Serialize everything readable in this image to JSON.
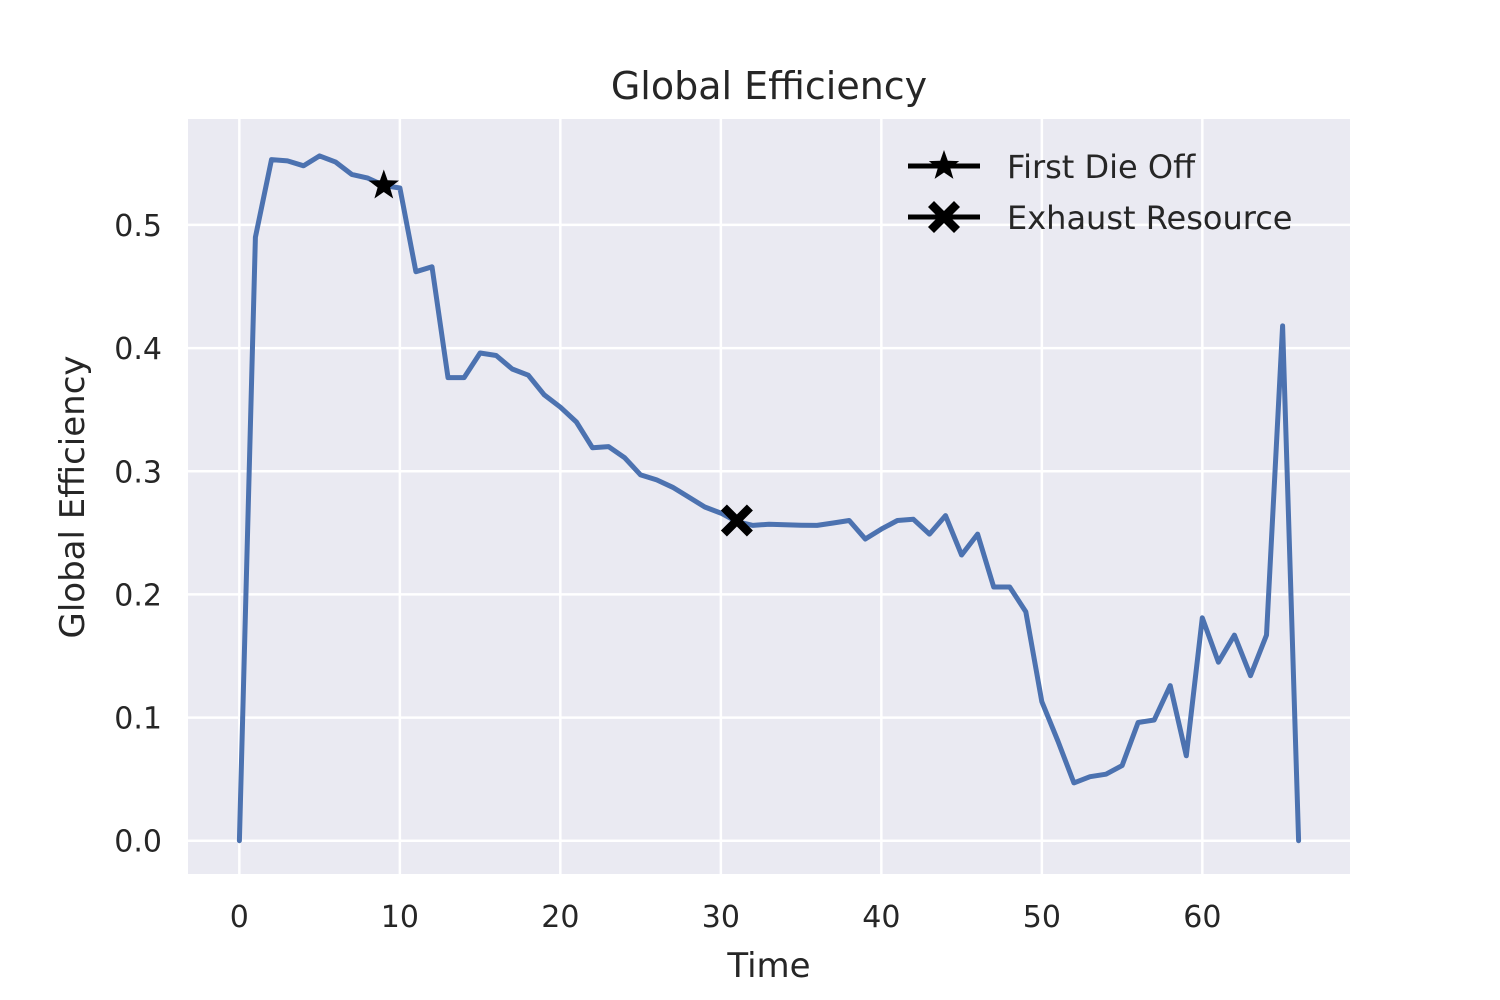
{
  "chart_data": {
    "type": "line",
    "title": "Global Efficiency",
    "xlabel": "Time",
    "ylabel": "Global Efficiency",
    "xlim": [
      -3.2,
      69.2
    ],
    "ylim": [
      -0.027,
      0.586
    ],
    "xticks": [
      0,
      10,
      20,
      30,
      40,
      50,
      60
    ],
    "yticks": [
      0.0,
      0.1,
      0.2,
      0.3,
      0.4,
      0.5
    ],
    "grid": true,
    "legend_position": "top-right",
    "colors": {
      "background": "#EAEAF2",
      "series": "#4C72B0",
      "markers": "#000000"
    },
    "series": [
      {
        "values": [
          [
            0,
            0.0
          ],
          [
            1,
            0.49
          ],
          [
            2,
            0.553
          ],
          [
            3,
            0.552
          ],
          [
            4,
            0.548
          ],
          [
            5,
            0.556
          ],
          [
            6,
            0.551
          ],
          [
            7,
            0.541
          ],
          [
            8,
            0.538
          ],
          [
            9,
            0.532
          ],
          [
            10,
            0.53
          ],
          [
            11,
            0.462
          ],
          [
            12,
            0.466
          ],
          [
            13,
            0.376
          ],
          [
            14,
            0.376
          ],
          [
            15,
            0.396
          ],
          [
            16,
            0.394
          ],
          [
            17,
            0.383
          ],
          [
            18,
            0.378
          ],
          [
            19,
            0.362
          ],
          [
            20,
            0.352
          ],
          [
            21,
            0.34
          ],
          [
            22,
            0.319
          ],
          [
            23,
            0.32
          ],
          [
            24,
            0.311
          ],
          [
            25,
            0.297
          ],
          [
            26,
            0.293
          ],
          [
            27,
            0.287
          ],
          [
            28,
            0.279
          ],
          [
            29,
            0.271
          ],
          [
            30,
            0.266
          ],
          [
            31,
            0.259
          ],
          [
            32,
            0.256
          ],
          [
            33,
            0.257
          ],
          [
            34,
            0.2565
          ],
          [
            35,
            0.2562
          ],
          [
            36,
            0.256
          ],
          [
            37,
            0.258
          ],
          [
            38,
            0.26
          ],
          [
            39,
            0.245
          ],
          [
            40,
            0.253
          ],
          [
            41,
            0.26
          ],
          [
            42,
            0.261
          ],
          [
            43,
            0.249
          ],
          [
            44,
            0.264
          ],
          [
            45,
            0.232
          ],
          [
            46,
            0.249
          ],
          [
            47,
            0.206
          ],
          [
            48,
            0.206
          ],
          [
            49,
            0.186
          ],
          [
            50,
            0.113
          ],
          [
            51,
            0.081
          ],
          [
            52,
            0.047
          ],
          [
            53,
            0.052
          ],
          [
            54,
            0.054
          ],
          [
            55,
            0.061
          ],
          [
            56,
            0.096
          ],
          [
            57,
            0.098
          ],
          [
            58,
            0.126
          ],
          [
            59,
            0.069
          ],
          [
            60,
            0.181
          ],
          [
            61,
            0.145
          ],
          [
            62,
            0.167
          ],
          [
            63,
            0.134
          ],
          [
            64,
            0.167
          ],
          [
            65,
            0.418
          ],
          [
            66,
            0.0
          ]
        ]
      }
    ],
    "markers": [
      {
        "name": "First Die Off",
        "symbol": "star",
        "x": 9,
        "y": 0.532
      },
      {
        "name": "Exhaust Resource",
        "symbol": "x",
        "x": 31,
        "y": 0.26
      }
    ]
  }
}
